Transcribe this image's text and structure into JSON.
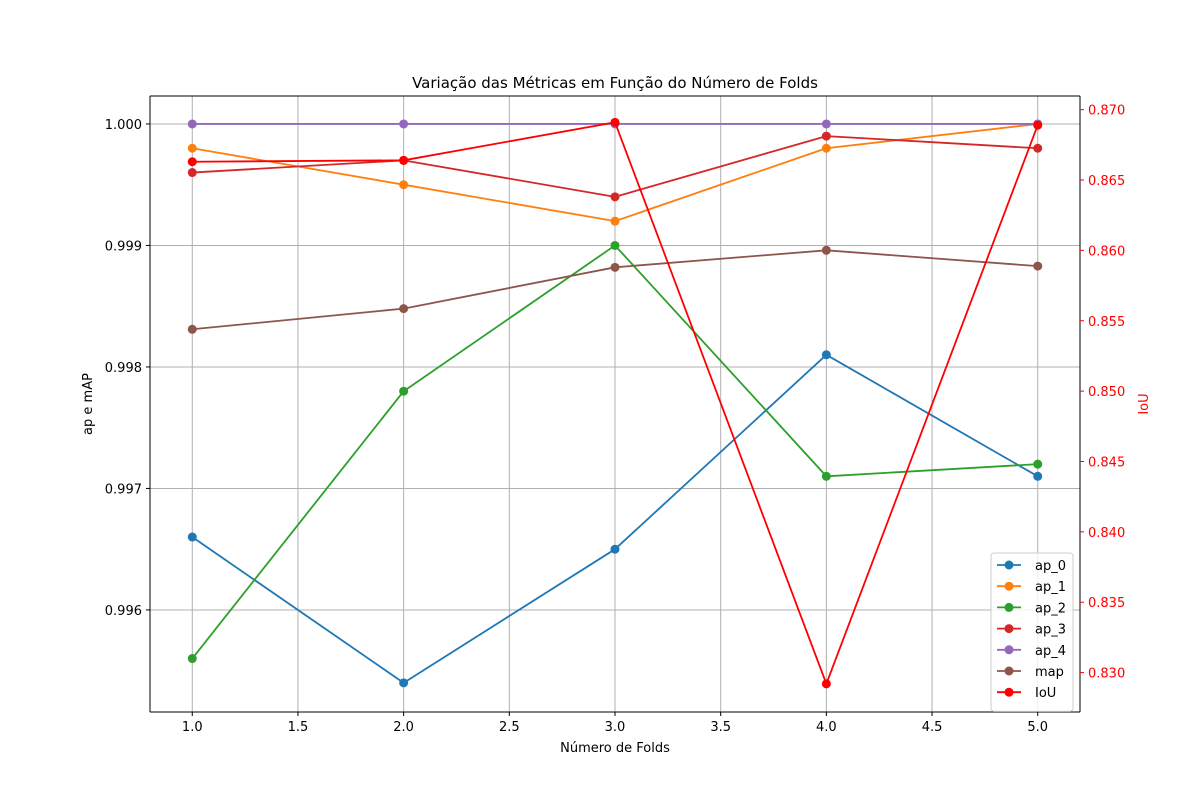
{
  "chart_data": {
    "type": "line",
    "title": "Variação das Métricas em Função do Número de Folds",
    "xlabel": "Número de Folds",
    "ylabel": "ap e mAP",
    "y2label": "IoU",
    "x": [
      1.0,
      2.0,
      3.0,
      4.0,
      5.0
    ],
    "xlim": [
      0.8,
      5.2
    ],
    "xticks": [
      "1.0",
      "1.5",
      "2.0",
      "2.5",
      "3.0",
      "3.5",
      "4.0",
      "4.5",
      "5.0"
    ],
    "ylim": [
      0.99516,
      1.00023
    ],
    "yticks": [
      "0.996",
      "0.997",
      "0.998",
      "0.999",
      "1.000"
    ],
    "y2lim": [
      0.8272,
      0.87097
    ],
    "y2ticks": [
      "0.830",
      "0.835",
      "0.840",
      "0.845",
      "0.850",
      "0.855",
      "0.860",
      "0.865",
      "0.870"
    ],
    "grid": true,
    "legend_position": "lower-right",
    "series": [
      {
        "name": "ap_0",
        "axis": "left",
        "color": "#1f77b4",
        "values": [
          0.9966,
          0.9954,
          0.9965,
          0.9981,
          0.9971
        ]
      },
      {
        "name": "ap_1",
        "axis": "left",
        "color": "#ff7f0e",
        "values": [
          0.9998,
          0.9995,
          0.9992,
          0.9998,
          1.0
        ]
      },
      {
        "name": "ap_2",
        "axis": "left",
        "color": "#2ca02c",
        "values": [
          0.9956,
          0.9978,
          0.999,
          0.9971,
          0.9972
        ]
      },
      {
        "name": "ap_3",
        "axis": "left",
        "color": "#d62728",
        "values": [
          0.9996,
          0.9997,
          0.9994,
          0.9999,
          0.9998
        ]
      },
      {
        "name": "ap_4",
        "axis": "left",
        "color": "#9467bd",
        "values": [
          1.0,
          1.0,
          1.0,
          1.0,
          1.0
        ]
      },
      {
        "name": "map",
        "axis": "left",
        "color": "#8c564b",
        "values": [
          0.99831,
          0.99848,
          0.99882,
          0.99896,
          0.99883
        ]
      },
      {
        "name": "IoU",
        "axis": "right",
        "color": "#ff0000",
        "values": [
          0.8663,
          0.8664,
          0.8691,
          0.8292,
          0.8689
        ]
      }
    ]
  }
}
